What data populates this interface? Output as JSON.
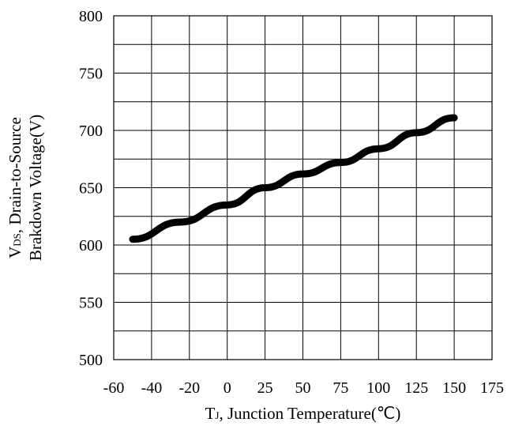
{
  "chart_data": {
    "type": "line",
    "title": "",
    "xlabel": {
      "symbol": "T",
      "subscript": "J",
      "text": ", Junction Temperature(℃)"
    },
    "ylabel": {
      "line1_symbol": "V",
      "line1_subscript": "DS",
      "line1_text": ", Drain-to-Source",
      "line2_text": "Brakdown Voltage(V)"
    },
    "x_tick_labels": [
      "-60",
      "-40",
      "-20",
      "0",
      "25",
      "50",
      "75",
      "100",
      "125",
      "150",
      "175"
    ],
    "y_tick_labels": [
      "800",
      "750",
      "700",
      "650",
      "600",
      "550",
      "500"
    ],
    "y_ticks": [
      800,
      750,
      700,
      650,
      600,
      550,
      500
    ],
    "ylim": [
      500,
      800
    ],
    "grid": true,
    "series": [
      {
        "x": [
          -50,
          -25,
          0,
          25,
          50,
          75,
          100,
          125,
          150
        ],
        "values": [
          605,
          620,
          635,
          650,
          662,
          672,
          684,
          698,
          711
        ]
      }
    ]
  }
}
